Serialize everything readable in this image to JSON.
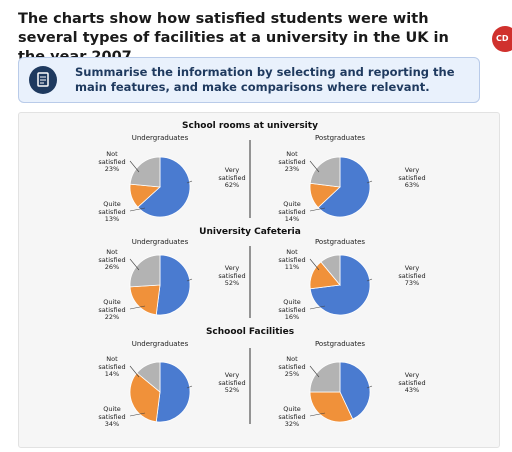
{
  "header": {
    "title": "The charts show how satisfied students were with several types of facilities at a university in the UK in the year 2007.",
    "logo": "CD"
  },
  "task": {
    "text": "Summarise the information by selecting and reporting the main features, and make comparisons where relevant."
  },
  "sections": [
    {
      "title": "School rooms at university"
    },
    {
      "title": "University Cafeteria"
    },
    {
      "title": "Schoool Facilities"
    }
  ],
  "chart_data": [
    {
      "type": "pie",
      "title": "Undergraduates",
      "categories": [
        "Very satisfied",
        "Quite satisfied",
        "Not satisfied"
      ],
      "values": [
        62,
        13,
        23
      ],
      "value_labels": [
        "62%",
        "13%",
        "23%"
      ],
      "colors": [
        "#4a7bd0",
        "#f0913a",
        "#b3b3b3"
      ]
    },
    {
      "type": "pie",
      "title": "Postgraduates",
      "categories": [
        "Very satisfied",
        "Quite satisfied",
        "Not satisfied"
      ],
      "values": [
        63,
        14,
        23
      ],
      "value_labels": [
        "63%",
        "14%",
        "23%"
      ],
      "colors": [
        "#4a7bd0",
        "#f0913a",
        "#b3b3b3"
      ]
    },
    {
      "type": "pie",
      "title": "Undergraduates",
      "categories": [
        "Very satisfied",
        "Quite satisfied",
        "Not satisfied"
      ],
      "values": [
        52,
        22,
        26
      ],
      "value_labels": [
        "52%",
        "22%",
        "26%"
      ],
      "colors": [
        "#4a7bd0",
        "#f0913a",
        "#b3b3b3"
      ]
    },
    {
      "type": "pie",
      "title": "Postgraduates",
      "categories": [
        "Very satisfied",
        "Quite satisfied",
        "Not satisfied"
      ],
      "values": [
        73,
        16,
        11
      ],
      "value_labels": [
        "73%",
        "16%",
        "11%"
      ],
      "colors": [
        "#4a7bd0",
        "#f0913a",
        "#b3b3b3"
      ]
    },
    {
      "type": "pie",
      "title": "Undergraduates",
      "categories": [
        "Very satisfied",
        "Quite satisfied",
        "Not satisfied"
      ],
      "values": [
        52,
        34,
        14
      ],
      "value_labels": [
        "52%",
        "34%",
        "14%"
      ],
      "colors": [
        "#4a7bd0",
        "#f0913a",
        "#b3b3b3"
      ]
    },
    {
      "type": "pie",
      "title": "Postgraduates",
      "categories": [
        "Very satisfied",
        "Quite satisfied",
        "Not satisfied"
      ],
      "values": [
        43,
        32,
        25
      ],
      "value_labels": [
        "43%",
        "32%",
        "25%"
      ],
      "colors": [
        "#4a7bd0",
        "#f0913a",
        "#b3b3b3"
      ]
    }
  ]
}
